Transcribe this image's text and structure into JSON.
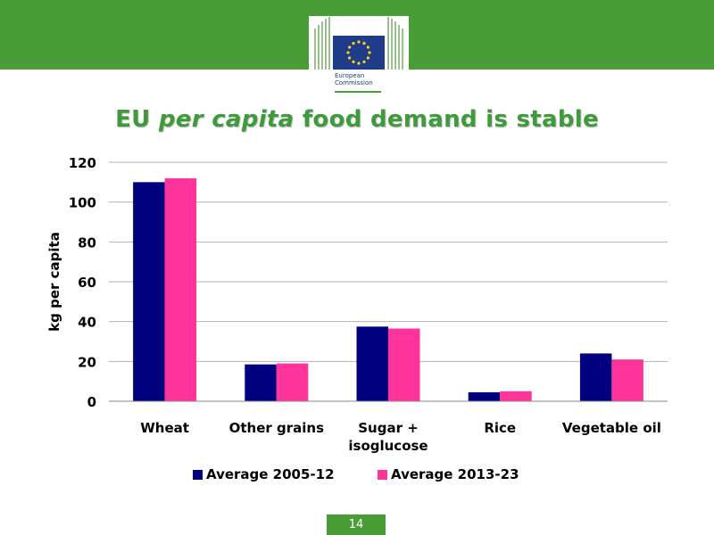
{
  "header": {
    "logo_line1": "European",
    "logo_line2": "Commission",
    "colors": {
      "band": "#4a9c36",
      "flag": "#1f3c88",
      "stars": "#ffd617"
    }
  },
  "title": {
    "part1": "EU ",
    "part2": "per capita",
    "part3": " food demand is stable"
  },
  "chart_data": {
    "type": "bar",
    "categories": [
      "Wheat",
      "Other grains",
      "Sugar +\nisoglucose",
      "Rice",
      "Vegetable oil"
    ],
    "series": [
      {
        "name": "Average 2005-12",
        "color": "#000080",
        "values": [
          110,
          18.5,
          37.5,
          4.5,
          24
        ]
      },
      {
        "name": "Average 2013-23",
        "color": "#ff3399",
        "values": [
          112,
          19,
          36.5,
          5,
          21
        ]
      }
    ],
    "ylabel": "kg per capita",
    "xlabel": "",
    "ylim": [
      0,
      120
    ],
    "yticks": [
      0,
      20,
      40,
      60,
      80,
      100,
      120
    ],
    "grid": true,
    "legend_position": "bottom"
  },
  "footer": {
    "page_number": "14"
  }
}
